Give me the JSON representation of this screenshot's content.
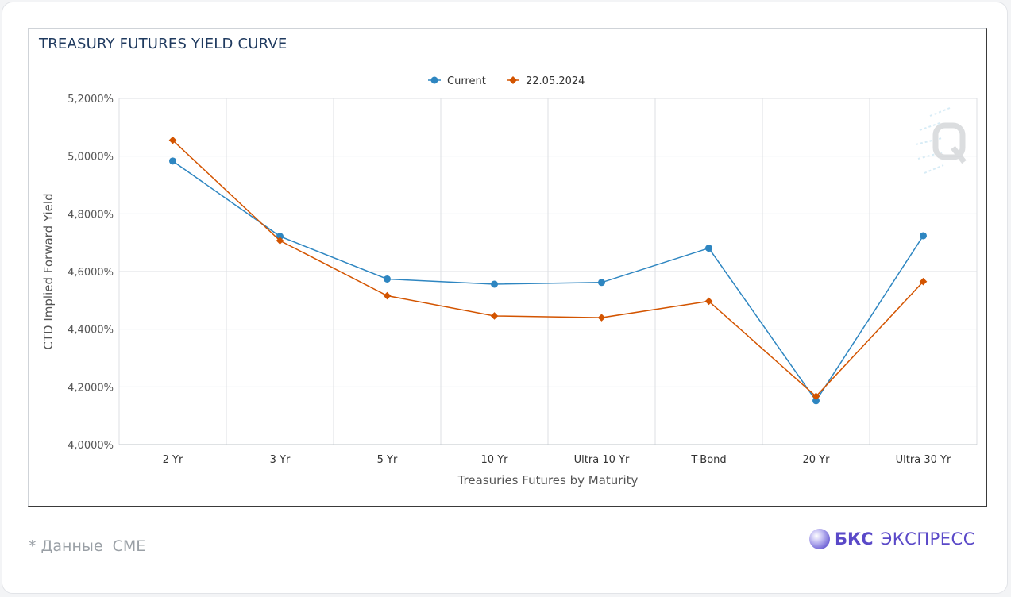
{
  "chart_data": {
    "type": "line",
    "title": "TREASURY FUTURES YIELD CURVE",
    "xlabel": "Treasuries Futures by Maturity",
    "ylabel": "CTD Implied Forward Yield",
    "categories": [
      "2 Yr",
      "3 Yr",
      "5 Yr",
      "10 Yr",
      "Ultra 10 Yr",
      "T-Bond",
      "20 Yr",
      "Ultra 30 Yr"
    ],
    "ylim": [
      4.0,
      5.2
    ],
    "yticks": [
      4.0,
      4.2,
      4.4,
      4.6,
      4.8,
      5.0,
      5.2
    ],
    "ytick_labels": [
      "4,0000%",
      "4,2000%",
      "4,4000%",
      "4,6000%",
      "4,8000%",
      "5,0000%",
      "5,2000%"
    ],
    "grid": true,
    "legend_position": "top-center",
    "series": [
      {
        "name": "Current",
        "color": "#2e86c1",
        "marker": "circle",
        "values": [
          4.983,
          4.722,
          4.574,
          4.556,
          4.562,
          4.681,
          4.152,
          4.724
        ]
      },
      {
        "name": "22.05.2024",
        "color": "#d35400",
        "marker": "diamond",
        "values": [
          5.055,
          4.707,
          4.516,
          4.446,
          4.44,
          4.497,
          4.167,
          4.565
        ]
      }
    ]
  },
  "footnote": "* Данные  CME",
  "brand": {
    "bold": "БКС",
    "light": "ЭКСПРЕСС",
    "color": "#5a49c8"
  },
  "watermark_icon": "q-logo-icon"
}
